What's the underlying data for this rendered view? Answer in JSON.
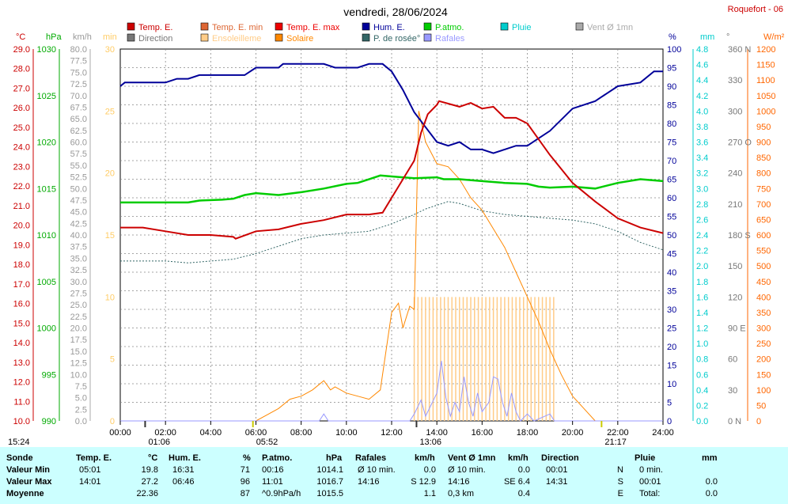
{
  "title": "vendredi, 28/06/2024",
  "station": "Roquefort - 06",
  "legend": [
    {
      "label": "Temp. E.",
      "color": "#cc0000"
    },
    {
      "label": "Temp. E. min",
      "color": "#dd6633"
    },
    {
      "label": "Temp. E. max",
      "color": "#ee0000"
    },
    {
      "label": "Hum. E.",
      "color": "#000099"
    },
    {
      "label": "P.atmo.",
      "color": "#00cc00"
    },
    {
      "label": "Pluie",
      "color": "#00cccc"
    },
    {
      "label": "Vent Ø 1mn",
      "color": "#aaaaaa"
    },
    {
      "label": "Direction",
      "color": "#777777"
    },
    {
      "label": "Ensoleilleme",
      "color": "#ffcc88"
    },
    {
      "label": "Solaire",
      "color": "#ff8800"
    },
    {
      "label": "P. de rosée°",
      "color": "#336666"
    },
    {
      "label": "Rafales",
      "color": "#9999ff"
    }
  ],
  "axes": {
    "temp": {
      "unit": "°C",
      "color": "#cc0000",
      "ticks": [
        "29.0",
        "28.0",
        "27.0",
        "26.0",
        "25.0",
        "24.0",
        "23.0",
        "22.0",
        "21.0",
        "20.0",
        "19.0",
        "18.0",
        "17.0",
        "16.0",
        "15.0",
        "14.0",
        "13.0",
        "12.0",
        "11.0",
        "10.0"
      ]
    },
    "pressure": {
      "unit": "hPa",
      "color": "#00aa00",
      "ticks": [
        "1030",
        "1025",
        "1020",
        "1015",
        "1010",
        "1005",
        "1000",
        "995",
        "990"
      ]
    },
    "wind": {
      "unit": "km/h",
      "color": "#999999",
      "ticks": [
        "80.0",
        "77.5",
        "75.0",
        "72.5",
        "70.0",
        "67.5",
        "65.0",
        "62.5",
        "60.0",
        "57.5",
        "55.0",
        "52.5",
        "50.0",
        "47.5",
        "45.0",
        "42.5",
        "40.0",
        "37.5",
        "35.0",
        "32.5",
        "30.0",
        "27.5",
        "25.0",
        "22.5",
        "20.0",
        "17.5",
        "15.0",
        "12.5",
        "10.0",
        "7.5",
        "5.0",
        "2.5",
        "0.0"
      ]
    },
    "min": {
      "unit": "min",
      "color": "#ffcc66",
      "ticks": [
        "30",
        "25",
        "20",
        "15",
        "10",
        "5",
        "0"
      ]
    },
    "humidity": {
      "unit": "%",
      "color": "#000099",
      "ticks": [
        "100",
        "95",
        "90",
        "85",
        "80",
        "75",
        "70",
        "65",
        "60",
        "55",
        "50",
        "45",
        "40",
        "35",
        "30",
        "25",
        "20",
        "15",
        "10",
        "5",
        "0"
      ]
    },
    "rain": {
      "unit": "mm",
      "color": "#00cccc",
      "ticks": [
        "4.8",
        "4.6",
        "4.4",
        "4.2",
        "4.0",
        "3.8",
        "3.6",
        "3.4",
        "3.2",
        "3.0",
        "2.8",
        "2.6",
        "2.4",
        "2.2",
        "2.0",
        "1.8",
        "1.6",
        "1.4",
        "1.2",
        "1.0",
        "0.8",
        "0.6",
        "0.4",
        "0.2",
        "0.0"
      ]
    },
    "direction": {
      "unit": "°",
      "color": "#777777",
      "ticks": [
        "360 N",
        "330",
        "300",
        "270 O",
        "240",
        "210",
        "180 S",
        "150",
        "120",
        "90  E",
        "60",
        "30",
        "0  N"
      ]
    },
    "solar": {
      "unit": "W/m²",
      "color": "#ff6600",
      "ticks": [
        "1200",
        "1150",
        "1100",
        "1050",
        "1000",
        "950",
        "900",
        "850",
        "800",
        "750",
        "700",
        "650",
        "600",
        "550",
        "500",
        "450",
        "400",
        "350",
        "300",
        "250",
        "200",
        "150",
        "100",
        "50",
        "0"
      ]
    }
  },
  "xaxis": {
    "ticks": [
      "00:00",
      "02:00",
      "04:00",
      "06:00",
      "08:00",
      "10:00",
      "12:00",
      "14:00",
      "16:00",
      "18:00",
      "20:00",
      "22:00",
      "24:00"
    ]
  },
  "markers": {
    "sunrise": "05:52",
    "sunset": "21:17",
    "moon_time": "01:06",
    "noon_mark": "13:06",
    "left_time": "15:24"
  },
  "chart_data": {
    "type": "line",
    "x_unit": "hour",
    "series": [
      {
        "name": "Temp. E.",
        "unit": "°C",
        "color": "#cc0000",
        "points": [
          [
            0,
            20.4
          ],
          [
            1,
            20.4
          ],
          [
            2,
            20.2
          ],
          [
            3,
            20.0
          ],
          [
            4,
            20.0
          ],
          [
            5,
            19.9
          ],
          [
            5.1,
            19.8
          ],
          [
            6,
            20.2
          ],
          [
            7,
            20.3
          ],
          [
            8,
            20.6
          ],
          [
            9,
            20.8
          ],
          [
            10,
            21.1
          ],
          [
            11,
            21.1
          ],
          [
            11.6,
            21.2
          ],
          [
            12,
            22.0
          ],
          [
            12.5,
            23.0
          ],
          [
            13,
            24.0
          ],
          [
            13.3,
            25.5
          ],
          [
            13.6,
            26.5
          ],
          [
            14,
            27.0
          ],
          [
            14.1,
            27.2
          ],
          [
            15,
            26.9
          ],
          [
            15.5,
            27.1
          ],
          [
            16,
            26.8
          ],
          [
            16.5,
            26.9
          ],
          [
            17,
            26.3
          ],
          [
            17.5,
            26.3
          ],
          [
            18,
            26.0
          ],
          [
            19,
            24.3
          ],
          [
            20,
            22.8
          ],
          [
            21,
            21.8
          ],
          [
            22,
            20.9
          ],
          [
            23,
            20.4
          ],
          [
            24,
            20.1
          ]
        ]
      },
      {
        "name": "Hum. E.",
        "unit": "%",
        "color": "#000099",
        "points": [
          [
            0,
            90
          ],
          [
            0.2,
            91
          ],
          [
            2,
            91
          ],
          [
            2.5,
            92
          ],
          [
            3,
            92
          ],
          [
            3.5,
            93
          ],
          [
            5.5,
            93
          ],
          [
            6,
            95
          ],
          [
            7,
            95
          ],
          [
            7.2,
            96
          ],
          [
            9,
            96
          ],
          [
            9.5,
            95
          ],
          [
            10.5,
            95
          ],
          [
            11,
            96
          ],
          [
            11.6,
            96
          ],
          [
            12,
            94
          ],
          [
            12.5,
            89
          ],
          [
            13,
            83
          ],
          [
            13.5,
            79
          ],
          [
            14,
            75
          ],
          [
            14.5,
            74
          ],
          [
            15,
            75
          ],
          [
            15.5,
            73
          ],
          [
            16,
            73
          ],
          [
            16.5,
            72
          ],
          [
            17,
            73
          ],
          [
            17.5,
            74
          ],
          [
            18,
            74
          ],
          [
            18.5,
            76
          ],
          [
            19,
            78
          ],
          [
            20,
            84
          ],
          [
            21,
            86
          ],
          [
            21.5,
            88
          ],
          [
            22,
            90
          ],
          [
            23,
            91
          ],
          [
            23.6,
            94
          ],
          [
            24,
            94
          ]
        ]
      },
      {
        "name": "P.atmo.",
        "unit": "hPa",
        "color": "#00cc00",
        "points": [
          [
            0,
            1013.5
          ],
          [
            3,
            1013.5
          ],
          [
            3.5,
            1013.7
          ],
          [
            4.5,
            1013.8
          ],
          [
            5,
            1013.9
          ],
          [
            5.5,
            1014.3
          ],
          [
            6,
            1014.5
          ],
          [
            7,
            1014.3
          ],
          [
            8,
            1014.6
          ],
          [
            9,
            1015.0
          ],
          [
            10,
            1015.5
          ],
          [
            10.5,
            1015.6
          ],
          [
            11,
            1016.0
          ],
          [
            11.5,
            1016.4
          ],
          [
            12,
            1016.3
          ],
          [
            13,
            1016.1
          ],
          [
            14,
            1016.2
          ],
          [
            14.3,
            1016.0
          ],
          [
            15,
            1016.0
          ],
          [
            16,
            1015.8
          ],
          [
            17,
            1015.6
          ],
          [
            18,
            1015.5
          ],
          [
            18.5,
            1015.2
          ],
          [
            19,
            1015.1
          ],
          [
            20,
            1015.2
          ],
          [
            21,
            1015.0
          ],
          [
            22,
            1015.6
          ],
          [
            23,
            1016.0
          ],
          [
            24,
            1015.8
          ]
        ]
      },
      {
        "name": "Solaire",
        "unit": "W/m²",
        "color": "#ff8800",
        "points": [
          [
            0,
            0
          ],
          [
            6,
            0
          ],
          [
            6.5,
            20
          ],
          [
            7,
            40
          ],
          [
            7.5,
            70
          ],
          [
            8,
            80
          ],
          [
            8.5,
            100
          ],
          [
            9,
            130
          ],
          [
            9.3,
            100
          ],
          [
            9.5,
            110
          ],
          [
            10,
            90
          ],
          [
            10.5,
            80
          ],
          [
            11,
            70
          ],
          [
            11.5,
            100
          ],
          [
            12,
            350
          ],
          [
            12.3,
            380
          ],
          [
            12.5,
            300
          ],
          [
            12.8,
            370
          ],
          [
            13,
            360
          ],
          [
            13.2,
            1000
          ],
          [
            13.5,
            900
          ],
          [
            14,
            830
          ],
          [
            14.5,
            820
          ],
          [
            15,
            780
          ],
          [
            15.5,
            720
          ],
          [
            16,
            680
          ],
          [
            16.5,
            620
          ],
          [
            17,
            560
          ],
          [
            17.5,
            480
          ],
          [
            18,
            400
          ],
          [
            18.5,
            320
          ],
          [
            19,
            230
          ],
          [
            19.5,
            150
          ],
          [
            20,
            80
          ],
          [
            20.5,
            40
          ],
          [
            21,
            0
          ],
          [
            24,
            0
          ]
        ]
      },
      {
        "name": "P. de rosée°",
        "unit": "°C",
        "color": "#336666",
        "points": [
          [
            0,
            18.6
          ],
          [
            2,
            18.6
          ],
          [
            3,
            18.5
          ],
          [
            4,
            18.6
          ],
          [
            5,
            18.7
          ],
          [
            6,
            19.0
          ],
          [
            7,
            19.4
          ],
          [
            8,
            19.8
          ],
          [
            9,
            20.0
          ],
          [
            10,
            20.1
          ],
          [
            11,
            20.2
          ],
          [
            12,
            20.6
          ],
          [
            13,
            21.1
          ],
          [
            13.5,
            21.4
          ],
          [
            14,
            21.6
          ],
          [
            14.5,
            21.8
          ],
          [
            15,
            21.7
          ],
          [
            16,
            21.3
          ],
          [
            17,
            21.1
          ],
          [
            18,
            21.0
          ],
          [
            19,
            20.9
          ],
          [
            20,
            20.8
          ],
          [
            21,
            20.6
          ],
          [
            22,
            20.2
          ],
          [
            23,
            19.6
          ],
          [
            24,
            19.2
          ]
        ]
      },
      {
        "name": "Rafales",
        "unit": "km/h",
        "color": "#9999ff",
        "points": [
          [
            0,
            0
          ],
          [
            8.8,
            0
          ],
          [
            9,
            1.5
          ],
          [
            9.2,
            0
          ],
          [
            12.8,
            0
          ],
          [
            13,
            1.5
          ],
          [
            13.3,
            4.5
          ],
          [
            13.5,
            1
          ],
          [
            13.7,
            3
          ],
          [
            14,
            6
          ],
          [
            14.2,
            12.9
          ],
          [
            14.4,
            5
          ],
          [
            14.6,
            1
          ],
          [
            14.8,
            4
          ],
          [
            15,
            2
          ],
          [
            15.2,
            9.5
          ],
          [
            15.4,
            4
          ],
          [
            15.6,
            1
          ],
          [
            15.8,
            6
          ],
          [
            16,
            2
          ],
          [
            16.3,
            4
          ],
          [
            16.5,
            9.5
          ],
          [
            16.7,
            9
          ],
          [
            16.9,
            4
          ],
          [
            17.1,
            1
          ],
          [
            17.3,
            6
          ],
          [
            17.5,
            2
          ],
          [
            17.7,
            0
          ],
          [
            18,
            1.5
          ],
          [
            18.3,
            0
          ],
          [
            19,
            1.5
          ],
          [
            19.2,
            0
          ],
          [
            24,
            0
          ]
        ]
      },
      {
        "name": "Ensoleilleme",
        "unit": "min",
        "color": "#ffcc88",
        "bars_from": 13.0,
        "bars_to": 19.2,
        "value": 10
      }
    ],
    "ylim_temp": [
      10,
      30
    ],
    "ylim_hum": [
      0,
      100
    ],
    "ylim_pres": [
      990,
      1030
    ],
    "ylim_solar": [
      0,
      1200
    ],
    "ylim_wind": [
      0,
      80
    ]
  },
  "stats": {
    "headers": {
      "sonde": "Sonde",
      "temp": "Temp. E.",
      "temp_u": "°C",
      "hum": "Hum. E.",
      "hum_u": "%",
      "pres": "P.atmo.",
      "pres_u": "hPa",
      "gust": "Rafales",
      "gust_u": "km/h",
      "wind": "Vent Ø 1mn",
      "wind_u": "km/h",
      "dir": "Direction",
      "rain": "Pluie",
      "rain_u": "mm"
    },
    "rows": [
      {
        "label": "Valeur Min",
        "temp_t": "05:01",
        "temp_v": "19.8",
        "hum_t": "16:31",
        "hum_v": "71",
        "pres_t": "00:16",
        "pres_v": "1014.1",
        "gust_t": "Ø 10 min.",
        "gust_v": "0.0",
        "wind_t": "Ø 10 min.",
        "wind_v": "0.0",
        "dir_t": "00:01",
        "dir_v": "N",
        "rain_t": "0 min.",
        "rain_v": ""
      },
      {
        "label": "Valeur Max",
        "temp_t": "14:01",
        "temp_v": "27.2",
        "hum_t": "06:46",
        "hum_v": "96",
        "pres_t": "11:01",
        "pres_v": "1016.7",
        "gust_t": "14:16",
        "gust_v": "S 12.9",
        "wind_t": "14:16",
        "wind_v": "SE 6.4",
        "dir_t": "14:31",
        "dir_v": "S",
        "rain_t": "00:01",
        "rain_v": "0.0"
      },
      {
        "label": "Moyenne",
        "temp_t": "",
        "temp_v": "22.36",
        "hum_t": "",
        "hum_v": "87",
        "pres_t": "^0.9hPa/h",
        "pres_v": "1015.5",
        "gust_t": "",
        "gust_v": "1.1",
        "wind_t": "0,3 km",
        "wind_v": "0.4",
        "dir_t": "",
        "dir_v": "E",
        "rain_t": "Total:",
        "rain_v": "0.0"
      }
    ]
  }
}
